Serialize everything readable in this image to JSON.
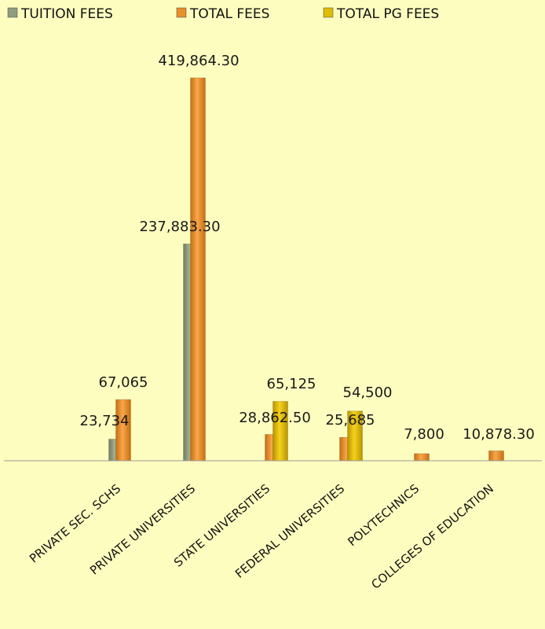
{
  "chart_data": {
    "type": "bar",
    "categories": [
      "PRIVATE SEC. SCHS",
      "PRIVATE UNIVERSITIES",
      "STATE UNIVERSITIES",
      "FEDERAL UNIVERSITIES",
      "POLYTECHNICS",
      "COLLEGES OF EDUCATION"
    ],
    "series": [
      {
        "name": "TUITION FEES",
        "color": "#8f9d7e",
        "values": [
          23734,
          237883.3,
          null,
          null,
          null,
          null
        ],
        "labels": [
          "23,734",
          "237,883.30",
          "",
          "",
          "",
          ""
        ]
      },
      {
        "name": "TOTAL FEES",
        "color": "#e8902a",
        "values": [
          67065,
          419864.3,
          28862.5,
          25685,
          7800,
          10878.3
        ],
        "labels": [
          "67,065",
          "419,864.30",
          "28,862.50",
          "25,685",
          "7,800",
          "10,878.30"
        ]
      },
      {
        "name": "TOTAL PG FEES",
        "color": "#e0bc06",
        "values": [
          null,
          null,
          65125,
          54500,
          null,
          null
        ],
        "labels": [
          "",
          "",
          "65,125",
          "54,500",
          "",
          ""
        ]
      }
    ],
    "legend_position": "top",
    "grid": false,
    "ylim": [
      0,
      419864.3
    ]
  }
}
